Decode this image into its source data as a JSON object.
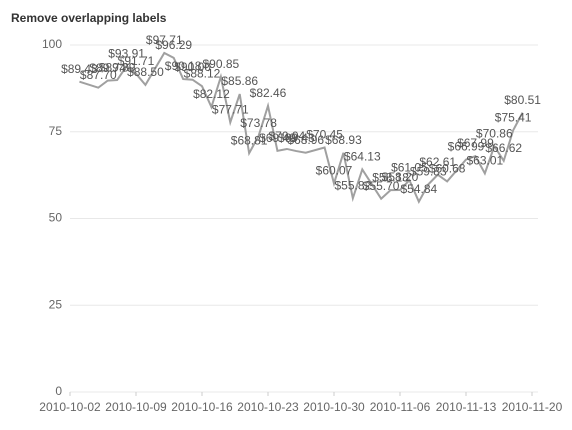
{
  "chart_data": {
    "type": "line",
    "title": "Remove overlapping labels",
    "x": [
      "2010-10-03",
      "2010-10-05",
      "2010-10-06",
      "2010-10-07",
      "2010-10-08",
      "2010-10-09",
      "2010-10-10",
      "2010-10-12",
      "2010-10-13",
      "2010-10-14",
      "2010-10-15",
      "2010-10-16",
      "2010-10-17",
      "2010-10-18",
      "2010-10-19",
      "2010-10-20",
      "2010-10-21",
      "2010-10-22",
      "2010-10-23",
      "2010-10-24",
      "2010-10-25",
      "2010-10-26",
      "2010-10-27",
      "2010-10-29",
      "2010-10-30",
      "2010-10-31",
      "2010-11-01",
      "2010-11-02",
      "2010-11-04",
      "2010-11-05",
      "2010-11-06",
      "2010-11-07",
      "2010-11-08",
      "2010-11-09",
      "2010-11-10",
      "2010-11-11",
      "2010-11-13",
      "2010-11-14",
      "2010-11-15",
      "2010-11-16",
      "2010-11-17",
      "2010-11-18",
      "2010-11-19"
    ],
    "series": [
      {
        "color": "#a0a0a0",
        "values": [
          89.43,
          87.7,
          89.74,
          89.89,
          93.91,
          91.71,
          88.5,
          97.71,
          96.29,
          90.18,
          90.0,
          88.12,
          82.12,
          90.85,
          77.71,
          85.86,
          68.81,
          73.78,
          82.46,
          69.49,
          70.04,
          69.43,
          68.96,
          70.45,
          60.07,
          68.93,
          55.82,
          64.13,
          55.7,
          58.18,
          58.2,
          61.05,
          54.84,
          59.83,
          62.61,
          60.68,
          66.99,
          67.99,
          63.01,
          70.86,
          66.62,
          75.41,
          80.51
        ],
        "value_labels": [
          "$89.43",
          "$87.70",
          "$89.74",
          "$89.89",
          "$93.91",
          "$91.71",
          "$88.50",
          "$97.71",
          "$96.29",
          "$90.18",
          "$90.00",
          "$88.12",
          "$82.12",
          "$90.85",
          "$77.71",
          "$85.86",
          "$68.81",
          "$73.78",
          "$82.46",
          "$69.49",
          "$70.04",
          "$69.43",
          "$68.96",
          "$70.45",
          "$60.07",
          "$68.93",
          "$55.82",
          "$64.13",
          "$55.70",
          "$58.18",
          "$58.20",
          "$61.05",
          "$54.84",
          "$59.83",
          "$62.61",
          "$60.68",
          "$66.99",
          "$67.99",
          "$63.01",
          "$70.86",
          "$66.62",
          "$75.41",
          "$80.51"
        ]
      }
    ],
    "xlim": [
      "2010-10-02",
      "2010-11-20"
    ],
    "xticks": [
      "2010-10-02",
      "2010-10-09",
      "2010-10-16",
      "2010-10-23",
      "2010-10-30",
      "2010-11-06",
      "2010-11-13",
      "2010-11-20"
    ],
    "ylim": [
      0,
      100
    ],
    "yticks": [
      0,
      25,
      50,
      75,
      100
    ],
    "grid": true
  }
}
